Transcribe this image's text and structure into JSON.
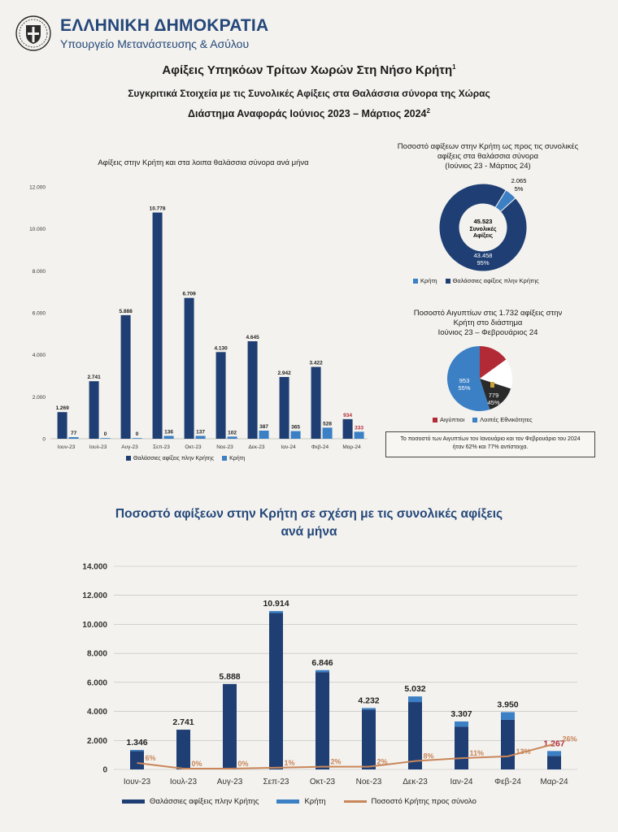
{
  "header": {
    "org_line1": "ΕΛΛΗΝΙΚΗ ΔΗΜΟΚΡΑΤΙΑ",
    "org_line2": "Υπουργείο Μετανάστευσης & Ασύλου"
  },
  "titles": {
    "main": "Αφίξεις Υπηκόων Τρίτων Χωρών Στη Νήσο Κρήτη",
    "main_sup": "1",
    "sub": "Συγκριτικά Στοιχεία με τις Συνολικές Αφίξεις στα Θαλάσσια σύνορα της Χώρας",
    "period": "Διάστημα Αναφοράς Ιούνιος 2023 – Μάρτιος 2024",
    "period_sup": "2"
  },
  "colors": {
    "dark_blue": "#1f3f74",
    "light_blue": "#3b7fc4",
    "red": "#b22a36",
    "dark": "#2a2a2a",
    "orange_line": "#c9865a",
    "title_blue": "#24477a"
  },
  "note": {
    "line1": "Το ποσοστό των Αιγυπτίων τον Ιανουάριο και τον Φεβρουάριο του 2024",
    "line2": "ήταν 62% και 77% αντίστοιχα."
  },
  "chart_data": [
    {
      "type": "bar",
      "title": "Αφίξεις στην Κρήτη και στα λοιπα θαλάσσια σύνορα ανά μήνα",
      "categories": [
        "Ιουν-23",
        "Ιουλ-23",
        "Αυγ-23",
        "Σεπ-23",
        "Οκτ-23",
        "Νοε-23",
        "Δεκ-23",
        "Ιαν-24",
        "Φεβ-24",
        "Μαρ-24"
      ],
      "series": [
        {
          "name": "Θαλάσσιες αφίξεις πλην Κρήτης",
          "values": [
            1269,
            2741,
            5888,
            10778,
            6709,
            4130,
            4645,
            2942,
            3422,
            934
          ],
          "labels": [
            "1.269",
            "2.741",
            "5.888",
            "10.778",
            "6.709",
            "4.130",
            "4.645",
            "2.942",
            "3.422",
            "934"
          ]
        },
        {
          "name": "Κρήτη",
          "values": [
            77,
            0,
            0,
            136,
            137,
            102,
            387,
            365,
            528,
            333
          ],
          "labels": [
            "77",
            "0",
            "0",
            "136",
            "137",
            "102",
            "387",
            "365",
            "528",
            "333"
          ]
        }
      ],
      "yticks": [
        "0",
        "2.000",
        "4.000",
        "6.000",
        "8.000",
        "10.000",
        "12.000"
      ],
      "ylim": [
        0,
        12000
      ]
    },
    {
      "type": "pie",
      "title_line1": "Ποσοστό αφίξεων στην Κρήτη ως προς τις συνολικές",
      "title_line2": "αφίξεις στα θαλάσσια σύνορα",
      "title_line3": "(Ιούνιος 23 - Μάρτιος 24)",
      "center_value": "45.523",
      "center_label1": "Συνολικές",
      "center_label2": "Αφίξεις",
      "slices": [
        {
          "name": "Κρήτη",
          "value": 2065,
          "label": "2.065",
          "percent": "5%"
        },
        {
          "name": "Θαλάσσιες αφίξεις πλην Κρήτης",
          "value": 43458,
          "label": "43.458",
          "percent": "95%"
        }
      ]
    },
    {
      "type": "pie",
      "title_line1": "Ποσοστό Αιγυπτίων στις 1.732 αφίξεις στην",
      "title_line2": "Κρήτη στο διάστημα",
      "title_line3": "Ιούνιος 23 – Φεβρουάριος 24",
      "slices": [
        {
          "name": "Αιγύπτιοι",
          "value": 779,
          "label": "779",
          "percent": "45%"
        },
        {
          "name": "Λοιπές Εθνικότητες",
          "value": 953,
          "label": "953",
          "percent": "55%"
        }
      ]
    },
    {
      "type": "bar",
      "title_line1": "Ποσοστό αφίξεων στην Κρήτη σε σχέση με τις συνολικές αφίξεις",
      "title_line2": "ανά μήνα",
      "categories": [
        "Ιουν-23",
        "Ιουλ-23",
        "Αυγ-23",
        "Σεπ-23",
        "Οκτ-23",
        "Νοε-23",
        "Δεκ-23",
        "Ιαν-24",
        "Φεβ-24",
        "Μαρ-24"
      ],
      "totals": [
        1346,
        2741,
        5888,
        10914,
        6846,
        4232,
        5032,
        3307,
        3950,
        1267
      ],
      "total_labels": [
        "1.346",
        "2.741",
        "5.888",
        "10.914",
        "6.846",
        "4.232",
        "5.032",
        "3.307",
        "3.950",
        "1.267"
      ],
      "series": [
        {
          "name": "Θαλάσσιες αφίξεις πλην Κρήτης",
          "values": [
            1269,
            2741,
            5888,
            10778,
            6709,
            4130,
            4645,
            2942,
            3422,
            934
          ]
        },
        {
          "name": "Κρήτη",
          "values": [
            77,
            0,
            0,
            136,
            137,
            102,
            387,
            365,
            528,
            333
          ]
        },
        {
          "name": "Ποσοστό Κρήτης προς σύνολο",
          "values": [
            6,
            0,
            0,
            1,
            2,
            2,
            8,
            11,
            13,
            26
          ],
          "labels": [
            "6%",
            "0%",
            "0%",
            "1%",
            "2%",
            "2%",
            "8%",
            "11%",
            "13%",
            "26%"
          ]
        }
      ],
      "yticks": [
        "0",
        "2.000",
        "4.000",
        "6.000",
        "8.000",
        "10.000",
        "12.000",
        "14.000"
      ],
      "ylim": [
        0,
        14000
      ]
    }
  ]
}
